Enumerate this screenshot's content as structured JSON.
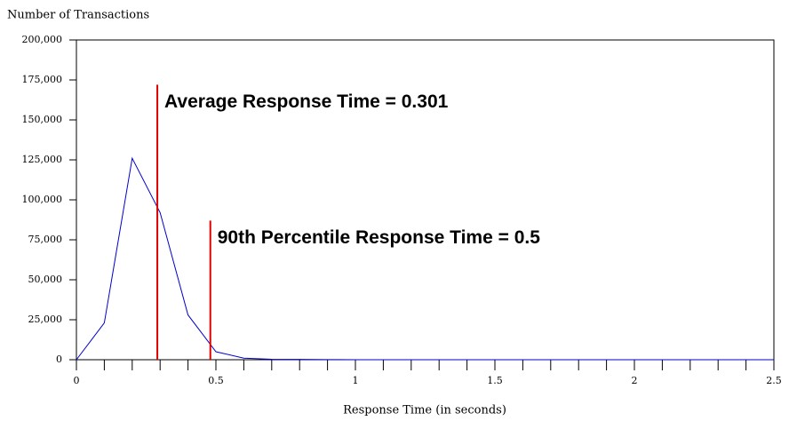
{
  "chart_data": {
    "type": "line",
    "ylabel": "Number of Transactions",
    "xlabel": "Response Time (in seconds)",
    "x": [
      0,
      0.1,
      0.2,
      0.3,
      0.4,
      0.5,
      0.6,
      0.7,
      0.8,
      0.9,
      1,
      1.1,
      1.2,
      1.3,
      1.4,
      1.5,
      1.6,
      1.7,
      1.8,
      1.9,
      2,
      2.1,
      2.2,
      2.3,
      2.4,
      2.5
    ],
    "series": [
      {
        "color": "#0000cc",
        "values": [
          0,
          23000,
          126000,
          92000,
          28000,
          5000,
          1000,
          300,
          200,
          100,
          0,
          0,
          0,
          0,
          0,
          0,
          0,
          0,
          0,
          0,
          0,
          0,
          0,
          0,
          0,
          0
        ]
      }
    ],
    "xlim": [
      0,
      2.5
    ],
    "xticks": [
      0,
      0.5,
      1,
      1.5,
      2,
      2.5
    ],
    "xminorticks": [
      0,
      0.1,
      0.2,
      0.3,
      0.4,
      0.5,
      0.6,
      0.7,
      0.8,
      0.9,
      1,
      1.1,
      1.2,
      1.3,
      1.4,
      1.5,
      1.6,
      1.7,
      1.8,
      1.9,
      2,
      2.1,
      2.2,
      2.3,
      2.4,
      2.5
    ],
    "ylim": [
      0,
      200000
    ],
    "yticks": [
      0,
      {
        "value": 25000,
        "label": "25,000"
      },
      {
        "value": 50000,
        "label": "50,000"
      },
      {
        "value": 75000,
        "label": "75,000"
      },
      {
        "value": 100000,
        "label": "100,000"
      },
      {
        "value": 125000,
        "label": "125,000"
      },
      {
        "value": 150000,
        "label": "150,000"
      },
      {
        "value": 175000,
        "label": "175,000"
      },
      {
        "value": 200000,
        "label": "200,000"
      }
    ],
    "vlines": [
      {
        "x": 0.29,
        "top": 172000,
        "color": "#e00000",
        "label": "Average Response Time = 0.301"
      },
      {
        "x": 0.48,
        "top": 87000,
        "color": "#e00000",
        "label": "90th Percentile Response Time = 0.5"
      }
    ]
  }
}
